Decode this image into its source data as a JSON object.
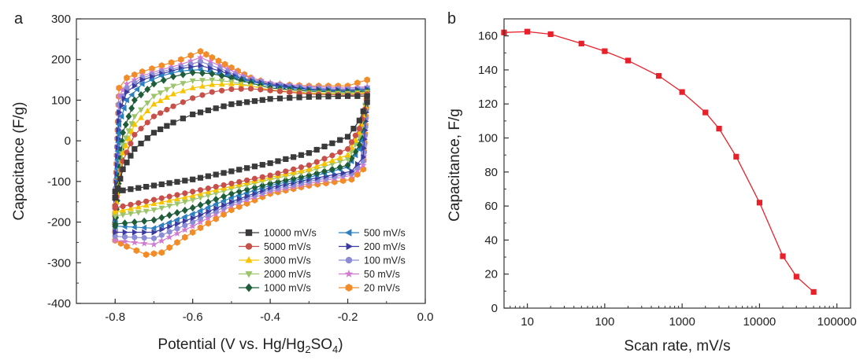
{
  "chart_data": [
    {
      "type": "line",
      "panel_label": "a",
      "xlabel": "Potential (V vs. Hg/Hg",
      "xlabel_sub": "2",
      "xlabel_mid": "SO",
      "xlabel_sub2": "4",
      "xlabel_end": ")",
      "ylabel": "Capacitance (F/g)",
      "xlim": [
        -0.9,
        0.0
      ],
      "ylim": [
        -400,
        300
      ],
      "x_ticks": [
        "-0.8",
        "-0.6",
        "-0.4",
        "-0.2",
        "0.0"
      ],
      "y_ticks": [
        "-400",
        "-300",
        "-200",
        "-100",
        "0",
        "100",
        "200",
        "300"
      ],
      "legend_position": "bottom-right",
      "series": [
        {
          "name": "10000 mV/s",
          "color": "#3a3a3a",
          "marker": "square",
          "upper": [
            [
              -0.8,
              -140
            ],
            [
              -0.78,
              -70
            ],
            [
              -0.75,
              -20
            ],
            [
              -0.7,
              20
            ],
            [
              -0.65,
              45
            ],
            [
              -0.6,
              65
            ],
            [
              -0.5,
              90
            ],
            [
              -0.4,
              103
            ],
            [
              -0.3,
              108
            ],
            [
              -0.2,
              110
            ],
            [
              -0.15,
              110
            ]
          ],
          "lower": [
            [
              -0.15,
              95
            ],
            [
              -0.17,
              50
            ],
            [
              -0.2,
              10
            ],
            [
              -0.3,
              -30
            ],
            [
              -0.4,
              -55
            ],
            [
              -0.5,
              -75
            ],
            [
              -0.6,
              -95
            ],
            [
              -0.7,
              -110
            ],
            [
              -0.8,
              -125
            ]
          ]
        },
        {
          "name": "5000 mV/s",
          "color": "#c8504a",
          "marker": "circle",
          "upper": [
            [
              -0.8,
              -160
            ],
            [
              -0.78,
              -50
            ],
            [
              -0.75,
              15
            ],
            [
              -0.7,
              60
            ],
            [
              -0.65,
              85
            ],
            [
              -0.6,
              105
            ],
            [
              -0.55,
              120
            ],
            [
              -0.5,
              127
            ],
            [
              -0.45,
              128
            ],
            [
              -0.4,
              124
            ],
            [
              -0.3,
              115
            ],
            [
              -0.2,
              112
            ],
            [
              -0.15,
              115
            ]
          ],
          "lower": [
            [
              -0.15,
              100
            ],
            [
              -0.17,
              30
            ],
            [
              -0.2,
              -20
            ],
            [
              -0.3,
              -60
            ],
            [
              -0.4,
              -85
            ],
            [
              -0.5,
              -105
            ],
            [
              -0.6,
              -125
            ],
            [
              -0.7,
              -145
            ],
            [
              -0.8,
              -165
            ]
          ]
        },
        {
          "name": "3000 mV/s",
          "color": "#f6c400",
          "marker": "triangle-up",
          "upper": [
            [
              -0.8,
              -170
            ],
            [
              -0.78,
              -30
            ],
            [
              -0.75,
              40
            ],
            [
              -0.7,
              90
            ],
            [
              -0.65,
              115
            ],
            [
              -0.6,
              130
            ],
            [
              -0.55,
              138
            ],
            [
              -0.5,
              140
            ],
            [
              -0.45,
              135
            ],
            [
              -0.4,
              125
            ],
            [
              -0.3,
              117
            ],
            [
              -0.2,
              115
            ],
            [
              -0.15,
              118
            ]
          ],
          "lower": [
            [
              -0.15,
              105
            ],
            [
              -0.17,
              20
            ],
            [
              -0.2,
              -35
            ],
            [
              -0.3,
              -70
            ],
            [
              -0.4,
              -90
            ],
            [
              -0.5,
              -112
            ],
            [
              -0.6,
              -135
            ],
            [
              -0.7,
              -155
            ],
            [
              -0.8,
              -175
            ]
          ]
        },
        {
          "name": "2000 mV/s",
          "color": "#9cc46b",
          "marker": "triangle-down",
          "upper": [
            [
              -0.8,
              -180
            ],
            [
              -0.78,
              -10
            ],
            [
              -0.75,
              60
            ],
            [
              -0.7,
              110
            ],
            [
              -0.65,
              135
            ],
            [
              -0.6,
              148
            ],
            [
              -0.55,
              150
            ],
            [
              -0.5,
              145
            ],
            [
              -0.45,
              135
            ],
            [
              -0.4,
              125
            ],
            [
              -0.3,
              118
            ],
            [
              -0.2,
              117
            ],
            [
              -0.15,
              120
            ]
          ],
          "lower": [
            [
              -0.15,
              108
            ],
            [
              -0.17,
              10
            ],
            [
              -0.2,
              -45
            ],
            [
              -0.3,
              -75
            ],
            [
              -0.4,
              -95
            ],
            [
              -0.5,
              -118
            ],
            [
              -0.6,
              -145
            ],
            [
              -0.7,
              -170
            ],
            [
              -0.8,
              -185
            ]
          ]
        },
        {
          "name": "1000 mV/s",
          "color": "#1f5c3a",
          "marker": "diamond",
          "upper": [
            [
              -0.8,
              -210
            ],
            [
              -0.78,
              20
            ],
            [
              -0.75,
              100
            ],
            [
              -0.7,
              140
            ],
            [
              -0.65,
              158
            ],
            [
              -0.6,
              168
            ],
            [
              -0.55,
              165
            ],
            [
              -0.5,
              155
            ],
            [
              -0.45,
              142
            ],
            [
              -0.4,
              130
            ],
            [
              -0.3,
              122
            ],
            [
              -0.2,
              120
            ],
            [
              -0.15,
              122
            ]
          ],
          "lower": [
            [
              -0.15,
              110
            ],
            [
              -0.17,
              -10
            ],
            [
              -0.2,
              -60
            ],
            [
              -0.3,
              -85
            ],
            [
              -0.4,
              -105
            ],
            [
              -0.5,
              -130
            ],
            [
              -0.6,
              -165
            ],
            [
              -0.7,
              -195
            ],
            [
              -0.8,
              -205
            ]
          ]
        },
        {
          "name": "500 mV/s",
          "color": "#2a7fc0",
          "marker": "triangle-left",
          "upper": [
            [
              -0.8,
              -200
            ],
            [
              -0.79,
              40
            ],
            [
              -0.77,
              100
            ],
            [
              -0.73,
              140
            ],
            [
              -0.68,
              160
            ],
            [
              -0.63,
              172
            ],
            [
              -0.58,
              175
            ],
            [
              -0.53,
              165
            ],
            [
              -0.47,
              150
            ],
            [
              -0.4,
              135
            ],
            [
              -0.3,
              125
            ],
            [
              -0.2,
              122
            ],
            [
              -0.15,
              125
            ]
          ],
          "lower": [
            [
              -0.15,
              112
            ],
            [
              -0.17,
              -20
            ],
            [
              -0.2,
              -65
            ],
            [
              -0.3,
              -90
            ],
            [
              -0.4,
              -110
            ],
            [
              -0.5,
              -140
            ],
            [
              -0.6,
              -180
            ],
            [
              -0.7,
              -215
            ],
            [
              -0.8,
              -210
            ]
          ]
        },
        {
          "name": "200 mV/s",
          "color": "#3a3aa0",
          "marker": "triangle-right",
          "upper": [
            [
              -0.8,
              -190
            ],
            [
              -0.79,
              70
            ],
            [
              -0.77,
              120
            ],
            [
              -0.73,
              150
            ],
            [
              -0.68,
              165
            ],
            [
              -0.63,
              178
            ],
            [
              -0.58,
              185
            ],
            [
              -0.53,
              172
            ],
            [
              -0.47,
              152
            ],
            [
              -0.4,
              138
            ],
            [
              -0.3,
              127
            ],
            [
              -0.2,
              124
            ],
            [
              -0.15,
              127
            ]
          ],
          "lower": [
            [
              -0.15,
              114
            ],
            [
              -0.16,
              -40
            ],
            [
              -0.19,
              -75
            ],
            [
              -0.3,
              -95
            ],
            [
              -0.4,
              -115
            ],
            [
              -0.5,
              -150
            ],
            [
              -0.6,
              -190
            ],
            [
              -0.7,
              -225
            ],
            [
              -0.8,
              -225
            ]
          ]
        },
        {
          "name": "100 mV/s",
          "color": "#8c8cd6",
          "marker": "circle",
          "upper": [
            [
              -0.8,
              -180
            ],
            [
              -0.79,
              90
            ],
            [
              -0.77,
              130
            ],
            [
              -0.73,
              155
            ],
            [
              -0.68,
              170
            ],
            [
              -0.63,
              182
            ],
            [
              -0.58,
              195
            ],
            [
              -0.53,
              178
            ],
            [
              -0.47,
              155
            ],
            [
              -0.4,
              140
            ],
            [
              -0.3,
              130
            ],
            [
              -0.2,
              127
            ],
            [
              -0.15,
              130
            ]
          ],
          "lower": [
            [
              -0.15,
              117
            ],
            [
              -0.16,
              -50
            ],
            [
              -0.19,
              -80
            ],
            [
              -0.3,
              -100
            ],
            [
              -0.4,
              -120
            ],
            [
              -0.5,
              -155
            ],
            [
              -0.6,
              -200
            ],
            [
              -0.7,
              -240
            ],
            [
              -0.8,
              -235
            ]
          ]
        },
        {
          "name": "50 mV/s",
          "color": "#d17ad1",
          "marker": "star",
          "upper": [
            [
              -0.8,
              -170
            ],
            [
              -0.79,
              110
            ],
            [
              -0.77,
              140
            ],
            [
              -0.73,
              160
            ],
            [
              -0.68,
              175
            ],
            [
              -0.63,
              188
            ],
            [
              -0.58,
              205
            ],
            [
              -0.53,
              185
            ],
            [
              -0.47,
              160
            ],
            [
              -0.4,
              143
            ],
            [
              -0.3,
              133
            ],
            [
              -0.2,
              130
            ],
            [
              -0.15,
              133
            ]
          ],
          "lower": [
            [
              -0.15,
              120
            ],
            [
              -0.16,
              -60
            ],
            [
              -0.19,
              -85
            ],
            [
              -0.3,
              -105
            ],
            [
              -0.4,
              -125
            ],
            [
              -0.5,
              -160
            ],
            [
              -0.6,
              -210
            ],
            [
              -0.7,
              -255
            ],
            [
              -0.8,
              -245
            ]
          ]
        },
        {
          "name": "20 mV/s",
          "color": "#f28c28",
          "marker": "hexagon",
          "upper": [
            [
              -0.8,
              -160
            ],
            [
              -0.79,
              130
            ],
            [
              -0.77,
              155
            ],
            [
              -0.73,
              170
            ],
            [
              -0.68,
              185
            ],
            [
              -0.63,
              200
            ],
            [
              -0.58,
              220
            ],
            [
              -0.55,
              205
            ],
            [
              -0.5,
              180
            ],
            [
              -0.45,
              155
            ],
            [
              -0.4,
              140
            ],
            [
              -0.3,
              135
            ],
            [
              -0.2,
              135
            ],
            [
              -0.15,
              150
            ]
          ],
          "lower": [
            [
              -0.15,
              125
            ],
            [
              -0.16,
              -70
            ],
            [
              -0.19,
              -95
            ],
            [
              -0.3,
              -110
            ],
            [
              -0.4,
              -130
            ],
            [
              -0.5,
              -170
            ],
            [
              -0.6,
              -225
            ],
            [
              -0.68,
              -275
            ],
            [
              -0.72,
              -280
            ],
            [
              -0.77,
              -260
            ],
            [
              -0.8,
              -245
            ]
          ]
        }
      ]
    },
    {
      "type": "line",
      "panel_label": "b",
      "xlabel": "Scan rate, mV/s",
      "ylabel": "Capacitance, F/g",
      "xscale": "log",
      "xlim": [
        5,
        150000
      ],
      "ylim": [
        0,
        170
      ],
      "x_ticks": [
        "10",
        "100",
        "1000",
        "10000",
        "100000"
      ],
      "y_ticks": [
        "0",
        "20",
        "40",
        "60",
        "80",
        "100",
        "120",
        "140",
        "160"
      ],
      "grid": false,
      "series": [
        {
          "color": "#e8202a",
          "marker": "square",
          "x": [
            5,
            10,
            20,
            50,
            100,
            200,
            500,
            1000,
            2000,
            3000,
            5000,
            10000,
            20000,
            30000,
            50000
          ],
          "y": [
            162,
            162.5,
            161,
            155.5,
            151,
            145.5,
            136.5,
            127,
            115,
            105.5,
            89,
            62,
            30.5,
            18.5,
            9.5
          ]
        }
      ]
    }
  ]
}
